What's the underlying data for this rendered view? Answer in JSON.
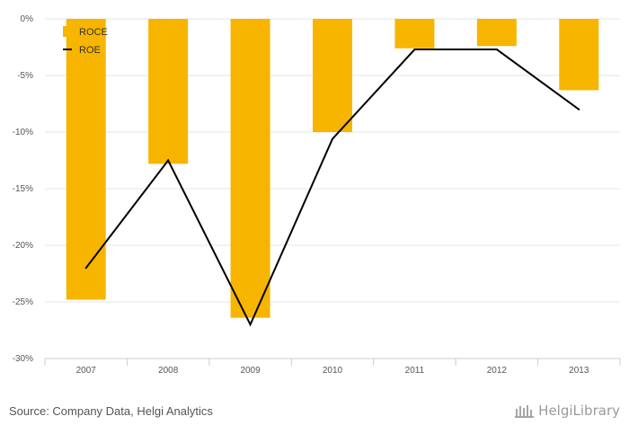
{
  "chart_data": {
    "type": "bar",
    "categories": [
      "2007",
      "2008",
      "2009",
      "2010",
      "2011",
      "2012",
      "2013"
    ],
    "series": [
      {
        "name": "ROCE",
        "type": "bar",
        "color": "#F7B500",
        "values": [
          -24.8,
          -12.8,
          -26.4,
          -10.0,
          -2.6,
          -2.4,
          -6.3
        ]
      },
      {
        "name": "ROE",
        "type": "line",
        "color": "#000000",
        "values": [
          -22.0,
          -12.5,
          -27.0,
          -10.6,
          -2.7,
          -2.7,
          -8.0
        ]
      }
    ],
    "ylim": [
      -30,
      0
    ],
    "yticks": [
      0,
      -5,
      -10,
      -15,
      -20,
      -25,
      -30
    ],
    "ytick_labels": [
      "0%",
      "-5%",
      "-10%",
      "-15%",
      "-20%",
      "-25%",
      "-30%"
    ],
    "grid": true,
    "legend_position": "top-left"
  },
  "footer": {
    "source": "Source: Company Data, Helgi Analytics",
    "logo_text": "HelgiLibrary"
  }
}
